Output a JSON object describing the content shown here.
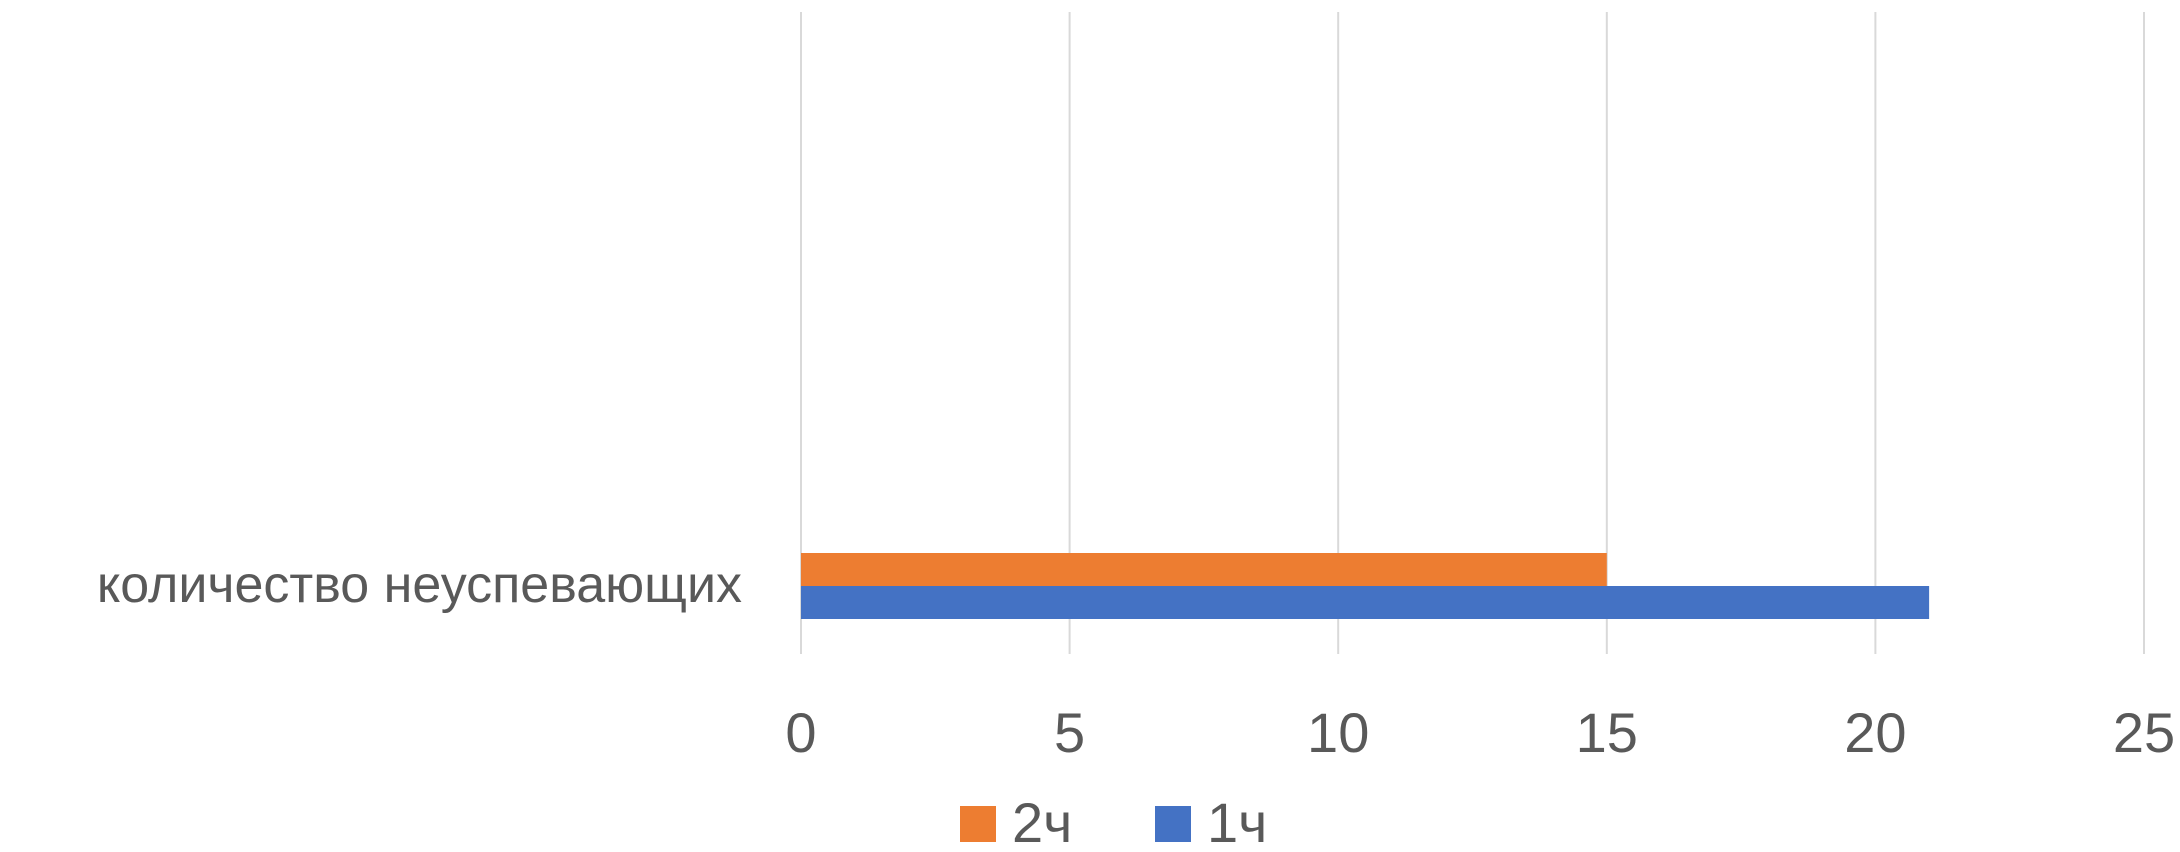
{
  "chart_data": {
    "type": "bar",
    "orientation": "horizontal",
    "categories": [
      "количество неуспевающих"
    ],
    "series": [
      {
        "name": "1ч",
        "values": [
          21
        ],
        "color": "#4472c4"
      },
      {
        "name": "2ч",
        "values": [
          15
        ],
        "color": "#ed7d31"
      }
    ],
    "title": "",
    "xlabel": "",
    "ylabel": "",
    "xlim": [
      0,
      25
    ],
    "x_ticks": [
      "0",
      "5",
      "10",
      "15",
      "20",
      "25"
    ],
    "grid": true,
    "legend_position": "bottom",
    "legend_order": [
      "2ч",
      "1ч"
    ]
  }
}
